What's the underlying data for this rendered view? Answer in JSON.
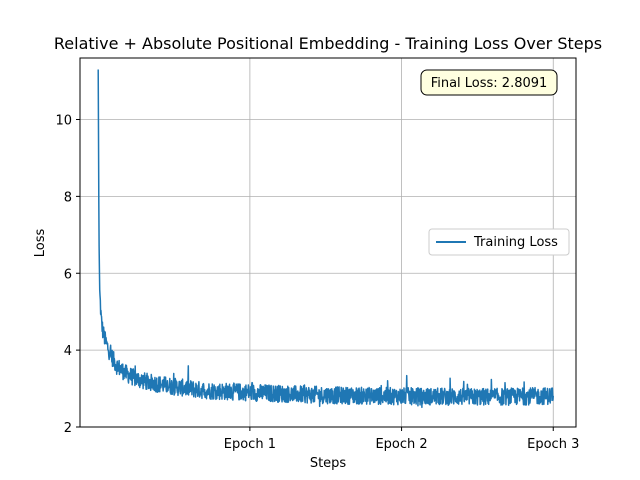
{
  "chart_data": {
    "type": "line",
    "title": "Relative + Absolute Positional Embedding - Training Loss Over Steps",
    "xlabel": "Steps",
    "ylabel": "Loss",
    "ylim": [
      2,
      11.6
    ],
    "yticks": [
      2,
      4,
      6,
      8,
      10
    ],
    "xticks": [
      {
        "value": 1,
        "label": "Epoch 1"
      },
      {
        "value": 2,
        "label": "Epoch 2"
      },
      {
        "value": 3,
        "label": "Epoch 3"
      }
    ],
    "xlim": [
      -0.12,
      3.15
    ],
    "grid": true,
    "legend_position": "center-right",
    "annotation": "Final Loss: 2.8091",
    "series": [
      {
        "name": "Training Loss",
        "color": "#1f77b4",
        "x": [
          0,
          0.005,
          0.01,
          0.02,
          0.03,
          0.05,
          0.08,
          0.12,
          0.18,
          0.25,
          0.35,
          0.5,
          0.7,
          1.0,
          1.3,
          1.6,
          2.0,
          2.3,
          2.6,
          3.0
        ],
        "y": [
          11.3,
          7.0,
          5.5,
          4.8,
          4.5,
          4.2,
          3.9,
          3.6,
          3.4,
          3.25,
          3.15,
          3.05,
          2.95,
          2.9,
          2.85,
          2.82,
          2.8,
          2.79,
          2.78,
          2.81
        ]
      }
    ]
  }
}
